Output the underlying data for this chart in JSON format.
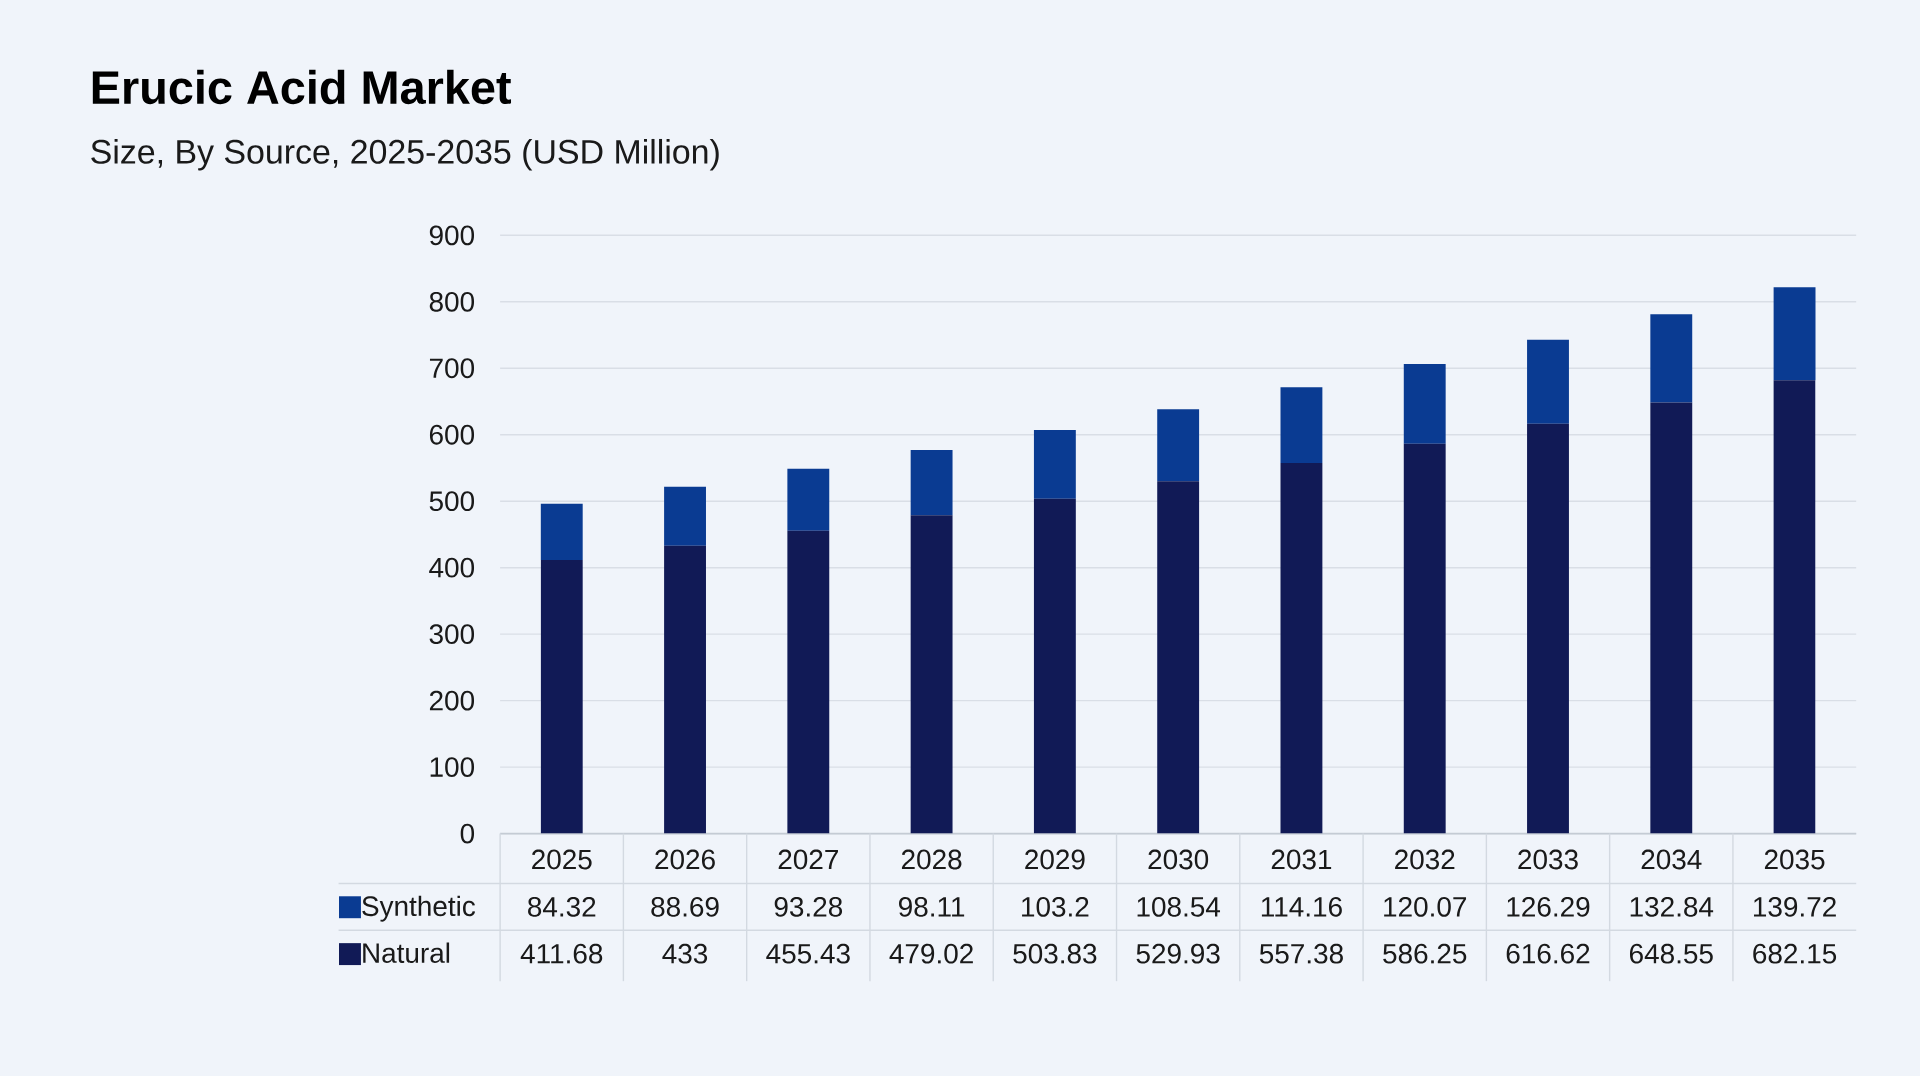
{
  "chart_data": {
    "type": "bar",
    "stacked": true,
    "title": "Erucic Acid Market",
    "subtitle": "Size, By Source, 2025-2035 (USD Million)",
    "categories": [
      "2025",
      "2026",
      "2027",
      "2028",
      "2029",
      "2030",
      "2031",
      "2032",
      "2033",
      "2034",
      "2035"
    ],
    "series": [
      {
        "name": "Natural",
        "color": "#111a56",
        "values": [
          411.68,
          433,
          455.43,
          479.02,
          503.83,
          529.93,
          557.38,
          586.25,
          616.62,
          648.55,
          682.15
        ]
      },
      {
        "name": "Synthetic",
        "color": "#0a3b92",
        "values": [
          84.32,
          88.69,
          93.28,
          98.11,
          103.2,
          108.54,
          114.16,
          120.07,
          126.29,
          132.84,
          139.72
        ]
      }
    ],
    "ylim": [
      0,
      900
    ],
    "yticks": [
      0,
      100,
      200,
      300,
      400,
      500,
      600,
      700,
      800,
      900
    ],
    "grid": "y",
    "legend": "bottom left",
    "data_labels": true
  }
}
